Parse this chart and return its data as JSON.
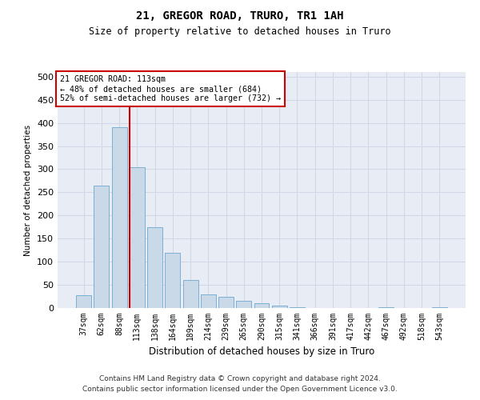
{
  "title1": "21, GREGOR ROAD, TRURO, TR1 1AH",
  "title2": "Size of property relative to detached houses in Truro",
  "xlabel": "Distribution of detached houses by size in Truro",
  "ylabel": "Number of detached properties",
  "categories": [
    "37sqm",
    "62sqm",
    "88sqm",
    "113sqm",
    "138sqm",
    "164sqm",
    "189sqm",
    "214sqm",
    "239sqm",
    "265sqm",
    "290sqm",
    "315sqm",
    "341sqm",
    "366sqm",
    "391sqm",
    "417sqm",
    "442sqm",
    "467sqm",
    "492sqm",
    "518sqm",
    "543sqm"
  ],
  "values": [
    27,
    265,
    390,
    305,
    175,
    120,
    60,
    30,
    25,
    15,
    10,
    5,
    1,
    0,
    0,
    0,
    0,
    1,
    0,
    0,
    2
  ],
  "bar_color": "#c9d9e8",
  "bar_edge_color": "#7bafd4",
  "vline_index": 3,
  "vline_color": "#cc0000",
  "annotation_line1": "21 GREGOR ROAD: 113sqm",
  "annotation_line2": "← 48% of detached houses are smaller (684)",
  "annotation_line3": "52% of semi-detached houses are larger (732) →",
  "annotation_box_color": "#cc0000",
  "ylim": [
    0,
    510
  ],
  "yticks": [
    0,
    50,
    100,
    150,
    200,
    250,
    300,
    350,
    400,
    450,
    500
  ],
  "grid_color": "#d0d8e8",
  "background_color": "#e8edf5",
  "footnote1": "Contains HM Land Registry data © Crown copyright and database right 2024.",
  "footnote2": "Contains public sector information licensed under the Open Government Licence v3.0."
}
